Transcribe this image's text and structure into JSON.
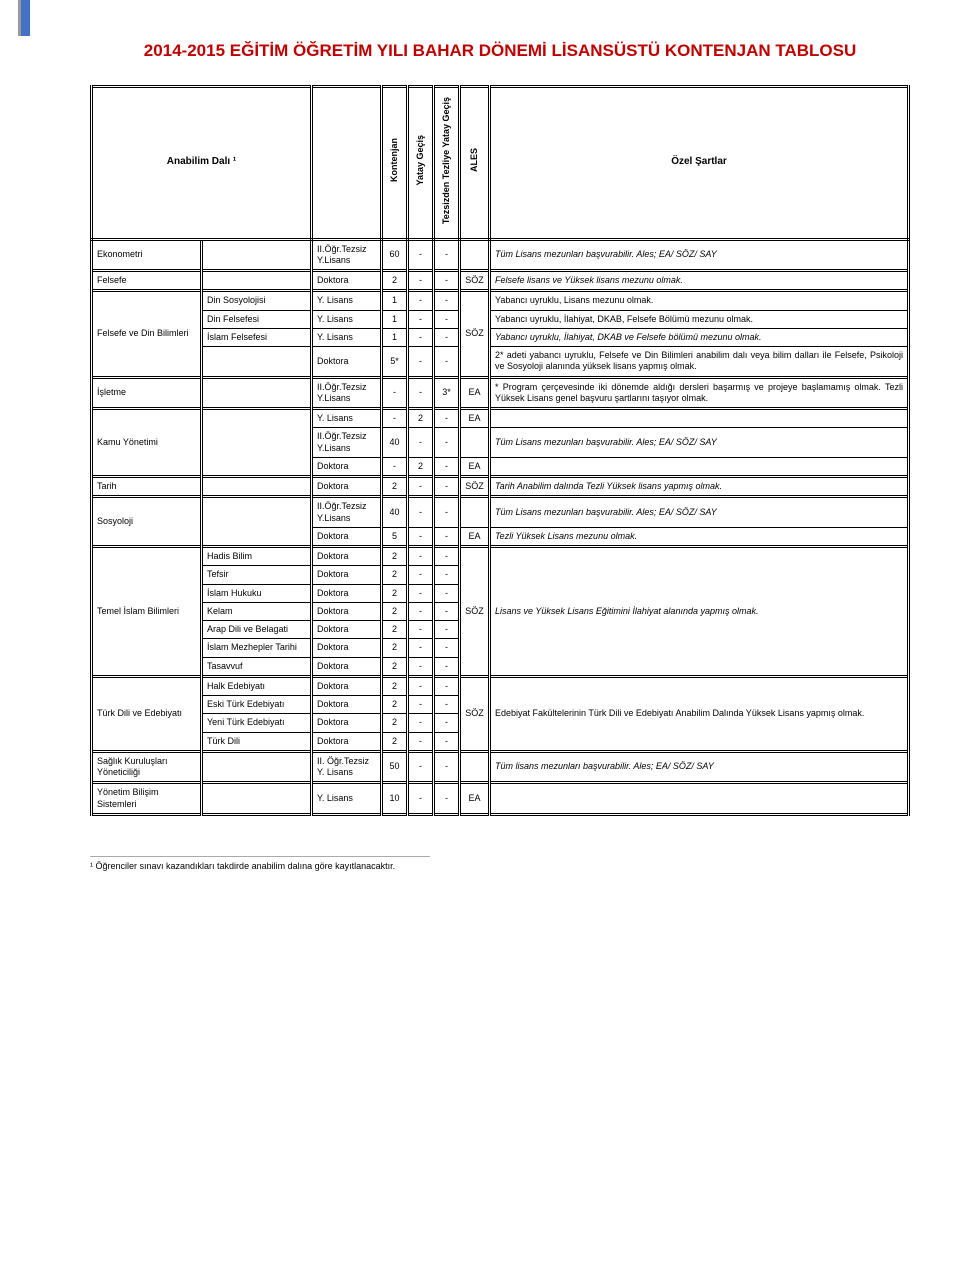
{
  "title": "2014-2015 EĞİTİM ÖĞRETİM YILI BAHAR DÖNEMİ LİSANSÜSTÜ KONTENJAN TABLOSU",
  "headers": {
    "dept": "Anabilim Dalı ¹",
    "kontenjan": "Kontenjan",
    "yatay": "Yatay Geçiş",
    "tezsiz": "Tezsizden Tezliye Yatay Geçiş",
    "ales": "ALES",
    "ozel": "Özel Şartlar"
  },
  "progLabels": {
    "tezsiz": "II.Öğr.Tezsiz Y.Lisans",
    "tezsiz2": "II. Öğr.Tezsiz Y. Lisans",
    "doktora": "Doktora",
    "ylisans": "Y. Lisans"
  },
  "rows": [
    {
      "sep": true,
      "dept": "Ekonometri",
      "deptSpan": 1,
      "sub": "",
      "subSpan": 1,
      "prog": "tezsiz",
      "k": "60",
      "y": "-",
      "t": "-",
      "a": "",
      "cond": "Tüm Lisans mezunları başvurabilir. Ales; EA/ SÖZ/ SAY",
      "condSpan": 1,
      "condItalic": true
    },
    {
      "sep": true,
      "dept": "Felsefe",
      "deptSpan": 1,
      "sub": "",
      "subSpan": 1,
      "prog": "doktora",
      "k": "2",
      "y": "-",
      "t": "-",
      "a": "SÖZ",
      "cond": "Felsefe lisans ve Yüksek lisans mezunu olmak.",
      "condSpan": 1,
      "condItalic": true
    },
    {
      "sep": true,
      "dept": "Felsefe ve Din Bilimleri",
      "deptSpan": 4,
      "sub": "Din Sosyolojisi",
      "subSpan": 1,
      "prog": "ylisans",
      "k": "1",
      "y": "-",
      "t": "-",
      "a": "SÖZ",
      "aSpan": 4,
      "cond": "Yabancı uyruklu, Lisans mezunu olmak.",
      "condSpan": 1
    },
    {
      "sub": "Din Felsefesi",
      "subSpan": 1,
      "prog": "ylisans",
      "k": "1",
      "y": "-",
      "t": "-",
      "cond": "Yabancı uyruklu, İlahiyat, DKAB, Felsefe Bölümü mezunu olmak.",
      "condSpan": 1
    },
    {
      "sub": "İslam Felsefesi",
      "subSpan": 1,
      "prog": "ylisans",
      "k": "1",
      "y": "-",
      "t": "-",
      "cond": "Yabancı uyruklu, İlahiyat, DKAB ve Felsefe bölümü mezunu olmak.",
      "condSpan": 1,
      "condItalic": true
    },
    {
      "sub": "",
      "subSpan": 1,
      "prog": "doktora",
      "k": "5*",
      "y": "-",
      "t": "-",
      "cond": "2* adeti yabancı uyruklu, Felsefe ve Din Bilimleri anabilim dalı veya bilim dalları ile Felsefe, Psikoloji ve Sosyoloji alanında yüksek lisans yapmış olmak.",
      "condSpan": 1
    },
    {
      "sep": true,
      "dept": "İşletme",
      "deptSpan": 1,
      "sub": "",
      "subSpan": 1,
      "prog": "tezsiz",
      "k": "-",
      "y": "-",
      "t": "3*",
      "a": "EA",
      "cond": "* Program çerçevesinde iki dönemde aldığı dersleri başarmış ve projeye başlamamış olmak. Tezli Yüksek Lisans genel başvuru şartlarını taşıyor olmak.",
      "condSpan": 1
    },
    {
      "sep": true,
      "dept": "Kamu Yönetimi",
      "deptSpan": 3,
      "sub": "",
      "subSpan": 3,
      "prog": "ylisans",
      "k": "-",
      "y": "2",
      "t": "-",
      "a": "EA",
      "cond": "",
      "condSpan": 1
    },
    {
      "prog": "tezsiz",
      "k": "40",
      "y": "-",
      "t": "-",
      "a": "",
      "cond": "Tüm Lisans mezunları başvurabilir. Ales; EA/ SÖZ/ SAY",
      "condSpan": 1,
      "condItalic": true
    },
    {
      "prog": "doktora",
      "k": "-",
      "y": "2",
      "t": "-",
      "a": "EA",
      "cond": "",
      "condSpan": 1
    },
    {
      "sep": true,
      "dept": "Tarih",
      "deptSpan": 1,
      "sub": "",
      "subSpan": 1,
      "prog": "doktora",
      "k": "2",
      "y": "-",
      "t": "-",
      "a": "SÖZ",
      "cond": "Tarih Anabilim dalında Tezli Yüksek lisans yapmış olmak.",
      "condSpan": 1,
      "condItalic": true
    },
    {
      "sep": true,
      "dept": "Sosyoloji",
      "deptSpan": 2,
      "sub": "",
      "subSpan": 2,
      "prog": "tezsiz",
      "k": "40",
      "y": "-",
      "t": "-",
      "a": "",
      "cond": "Tüm Lisans mezunları başvurabilir. Ales; EA/ SÖZ/ SAY",
      "condSpan": 1,
      "condItalic": true
    },
    {
      "prog": "doktora",
      "k": "5",
      "y": "-",
      "t": "-",
      "a": "EA",
      "cond": "Tezli Yüksek Lisans mezunu olmak.",
      "condSpan": 1,
      "condItalic": true
    },
    {
      "sep": true,
      "dept": "Temel İslam Bilimleri",
      "deptSpan": 7,
      "sub": "Hadis Bilim",
      "subSpan": 1,
      "prog": "doktora",
      "k": "2",
      "y": "-",
      "t": "-",
      "a": "SÖZ",
      "aSpan": 7,
      "cond": "Lisans ve Yüksek Lisans Eğitimini İlahiyat alanında yapmış olmak.",
      "condSpan": 7,
      "condItalic": true
    },
    {
      "sub": "Tefsir",
      "subSpan": 1,
      "prog": "doktora",
      "k": "2",
      "y": "-",
      "t": "-"
    },
    {
      "sub": "İslam Hukuku",
      "subSpan": 1,
      "prog": "doktora",
      "k": "2",
      "y": "-",
      "t": "-"
    },
    {
      "sub": "Kelam",
      "subSpan": 1,
      "prog": "doktora",
      "k": "2",
      "y": "-",
      "t": "-"
    },
    {
      "sub": "Arap Dili ve Belagati",
      "subSpan": 1,
      "prog": "doktora",
      "k": "2",
      "y": "-",
      "t": "-"
    },
    {
      "sub": "İslam Mezhepler Tarihi",
      "subSpan": 1,
      "prog": "doktora",
      "k": "2",
      "y": "-",
      "t": "-"
    },
    {
      "sub": "Tasavvuf",
      "subSpan": 1,
      "prog": "doktora",
      "k": "2",
      "y": "-",
      "t": "-"
    },
    {
      "sep": true,
      "dept": "Türk Dili ve Edebiyatı",
      "deptSpan": 4,
      "sub": "Halk Edebiyatı",
      "subSpan": 1,
      "prog": "doktora",
      "k": "2",
      "y": "-",
      "t": "-",
      "a": "SÖZ",
      "aSpan": 4,
      "cond": "Edebiyat Fakültelerinin Türk Dili ve Edebiyatı Anabilim Dalında Yüksek Lisans yapmış olmak.",
      "condSpan": 4
    },
    {
      "sub": "Eski Türk Edebiyatı",
      "subSpan": 1,
      "prog": "doktora",
      "k": "2",
      "y": "-",
      "t": "-"
    },
    {
      "sub": "Yeni Türk Edebiyatı",
      "subSpan": 1,
      "prog": "doktora",
      "k": "2",
      "y": "-",
      "t": "-"
    },
    {
      "sub": "Türk Dili",
      "subSpan": 1,
      "prog": "doktora",
      "k": "2",
      "y": "-",
      "t": "-"
    },
    {
      "sep": true,
      "dept": "Sağlık Kuruluşları Yöneticiliği",
      "deptSpan": 1,
      "sub": "",
      "subSpan": 1,
      "prog": "tezsiz2",
      "k": "50",
      "y": "-",
      "t": "-",
      "a": "",
      "cond": "Tüm lisans mezunları başvurabilir. Ales; EA/ SÖZ/ SAY",
      "condSpan": 1,
      "condItalic": true
    },
    {
      "sep": true,
      "dept": "Yönetim Bilişim Sistemleri",
      "deptSpan": 1,
      "sub": "",
      "subSpan": 1,
      "prog": "ylisans",
      "k": "10",
      "y": "-",
      "t": "-",
      "a": "EA",
      "cond": "",
      "condSpan": 1
    }
  ],
  "footnote": "¹ Öğrenciler sınavı kazandıkları takdirde anabilim dalına göre kayıtlanacaktır.",
  "colors": {
    "title": "#c00000",
    "accent": "#4472c4",
    "border": "#000000",
    "background": "#ffffff"
  },
  "fontsizes": {
    "title": 17,
    "body": 9,
    "header": 10,
    "footnote": 9
  }
}
